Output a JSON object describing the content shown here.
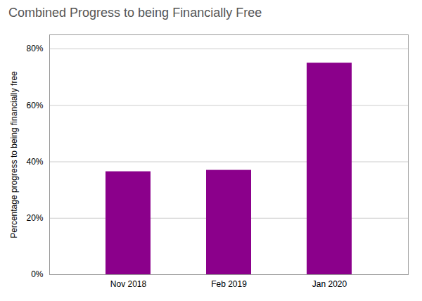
{
  "chart_data": {
    "type": "bar",
    "title": "Combined Progress to being Financially Free",
    "categories": [
      "Nov 2018",
      "Feb 2019",
      "Jan 2020"
    ],
    "values": [
      36.5,
      37.0,
      75.0
    ],
    "color": "#8B008B",
    "ylabel": "Percentage progress to being financially free",
    "ylim": [
      0,
      85
    ],
    "yticks": [
      {
        "value": 0,
        "label": "0%"
      },
      {
        "value": 20,
        "label": "20%"
      },
      {
        "value": 40,
        "label": "40%"
      },
      {
        "value": 60,
        "label": "60%"
      },
      {
        "value": 80,
        "label": "80%"
      }
    ],
    "grid": true
  }
}
